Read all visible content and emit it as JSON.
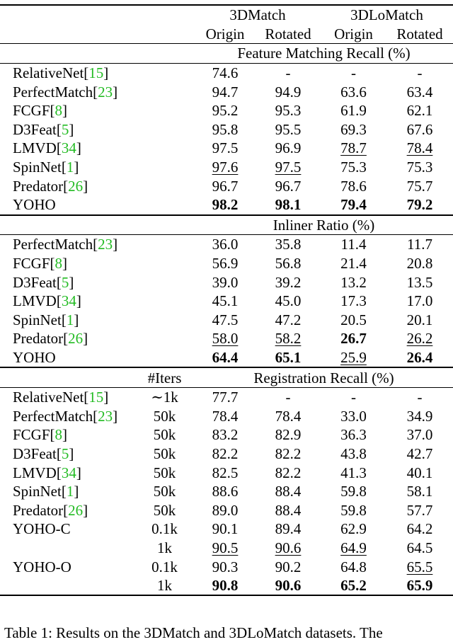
{
  "header": {
    "group1": "3DMatch",
    "group2": "3DLoMatch",
    "subcols": [
      "Origin",
      "Rotated",
      "Origin",
      "Rotated"
    ]
  },
  "sections": [
    {
      "title": "Feature Matching Recall (%)",
      "iters_label": "",
      "rows": [
        {
          "name": "RelativeNet",
          "cite": "15",
          "iters": "",
          "cells": [
            {
              "v": "74.6"
            },
            {
              "v": "-"
            },
            {
              "v": "-"
            },
            {
              "v": "-"
            }
          ]
        },
        {
          "name": "PerfectMatch",
          "cite": "23",
          "iters": "",
          "cells": [
            {
              "v": "94.7"
            },
            {
              "v": "94.9"
            },
            {
              "v": "63.6"
            },
            {
              "v": "63.4"
            }
          ]
        },
        {
          "name": "FCGF",
          "cite": "8",
          "iters": "",
          "cells": [
            {
              "v": "95.2"
            },
            {
              "v": "95.3"
            },
            {
              "v": "61.9"
            },
            {
              "v": "62.1"
            }
          ]
        },
        {
          "name": "D3Feat",
          "cite": "5",
          "iters": "",
          "cells": [
            {
              "v": "95.8"
            },
            {
              "v": "95.5"
            },
            {
              "v": "69.3"
            },
            {
              "v": "67.6"
            }
          ]
        },
        {
          "name": "LMVD",
          "cite": "34",
          "iters": "",
          "cells": [
            {
              "v": "97.5"
            },
            {
              "v": "96.9"
            },
            {
              "v": "78.7",
              "u": true
            },
            {
              "v": "78.4",
              "u": true
            }
          ]
        },
        {
          "name": "SpinNet",
          "cite": "1",
          "iters": "",
          "cells": [
            {
              "v": "97.6",
              "u": true
            },
            {
              "v": "97.5",
              "u": true
            },
            {
              "v": "75.3"
            },
            {
              "v": "75.3"
            }
          ]
        },
        {
          "name": "Predator",
          "cite": "26",
          "iters": "",
          "cells": [
            {
              "v": "96.7"
            },
            {
              "v": "96.7"
            },
            {
              "v": "78.6"
            },
            {
              "v": "75.7"
            }
          ]
        },
        {
          "name": "YOHO",
          "cite": "",
          "iters": "",
          "cells": [
            {
              "v": "98.2",
              "b": true
            },
            {
              "v": "98.1",
              "b": true
            },
            {
              "v": "79.4",
              "b": true
            },
            {
              "v": "79.2",
              "b": true
            }
          ]
        }
      ]
    },
    {
      "title": "Inliner Ratio (%)",
      "iters_label": "",
      "rows": [
        {
          "name": "PerfectMatch",
          "cite": "23",
          "iters": "",
          "cells": [
            {
              "v": "36.0"
            },
            {
              "v": "35.8"
            },
            {
              "v": "11.4"
            },
            {
              "v": "11.7"
            }
          ]
        },
        {
          "name": "FCGF",
          "cite": "8",
          "iters": "",
          "cells": [
            {
              "v": "56.9"
            },
            {
              "v": "56.8"
            },
            {
              "v": "21.4"
            },
            {
              "v": "20.8"
            }
          ]
        },
        {
          "name": "D3Feat",
          "cite": "5",
          "iters": "",
          "cells": [
            {
              "v": "39.0"
            },
            {
              "v": "39.2"
            },
            {
              "v": "13.2"
            },
            {
              "v": "13.5"
            }
          ]
        },
        {
          "name": "LMVD",
          "cite": "34",
          "iters": "",
          "cells": [
            {
              "v": "45.1"
            },
            {
              "v": "45.0"
            },
            {
              "v": "17.3"
            },
            {
              "v": "17.0"
            }
          ]
        },
        {
          "name": "SpinNet",
          "cite": "1",
          "iters": "",
          "cells": [
            {
              "v": "47.5"
            },
            {
              "v": "47.2"
            },
            {
              "v": "20.5"
            },
            {
              "v": "20.1"
            }
          ]
        },
        {
          "name": "Predator",
          "cite": "26",
          "iters": "",
          "cells": [
            {
              "v": "58.0",
              "u": true
            },
            {
              "v": "58.2",
              "u": true
            },
            {
              "v": "26.7",
              "b": true
            },
            {
              "v": "26.2",
              "u": true
            }
          ]
        },
        {
          "name": "YOHO",
          "cite": "",
          "iters": "",
          "cells": [
            {
              "v": "64.4",
              "b": true
            },
            {
              "v": "65.1",
              "b": true
            },
            {
              "v": "25.9",
              "u": true
            },
            {
              "v": "26.4",
              "b": true
            }
          ]
        }
      ]
    },
    {
      "title": "Registration Recall (%)",
      "iters_label": "#Iters",
      "rows": [
        {
          "name": "RelativeNet",
          "cite": "15",
          "iters": "∼1k",
          "cells": [
            {
              "v": "77.7"
            },
            {
              "v": "-"
            },
            {
              "v": "-"
            },
            {
              "v": "-"
            }
          ]
        },
        {
          "name": "PerfectMatch",
          "cite": "23",
          "iters": "50k",
          "cells": [
            {
              "v": "78.4"
            },
            {
              "v": "78.4"
            },
            {
              "v": "33.0"
            },
            {
              "v": "34.9"
            }
          ]
        },
        {
          "name": "FCGF",
          "cite": "8",
          "iters": "50k",
          "cells": [
            {
              "v": "83.2"
            },
            {
              "v": "82.9"
            },
            {
              "v": "36.3"
            },
            {
              "v": "37.0"
            }
          ]
        },
        {
          "name": "D3Feat",
          "cite": "5",
          "iters": "50k",
          "cells": [
            {
              "v": "82.2"
            },
            {
              "v": "82.2"
            },
            {
              "v": "43.8"
            },
            {
              "v": "42.7"
            }
          ]
        },
        {
          "name": "LMVD",
          "cite": "34",
          "iters": "50k",
          "cells": [
            {
              "v": "82.5"
            },
            {
              "v": "82.2"
            },
            {
              "v": "41.3"
            },
            {
              "v": "40.1"
            }
          ]
        },
        {
          "name": "SpinNet",
          "cite": "1",
          "iters": "50k",
          "cells": [
            {
              "v": "88.6"
            },
            {
              "v": "88.4"
            },
            {
              "v": "59.8"
            },
            {
              "v": "58.1"
            }
          ]
        },
        {
          "name": "Predator",
          "cite": "26",
          "iters": "50k",
          "cells": [
            {
              "v": "89.0"
            },
            {
              "v": "88.4"
            },
            {
              "v": "59.8"
            },
            {
              "v": "57.7"
            }
          ]
        },
        {
          "name": "YOHO-C",
          "cite": "",
          "iters": "0.1k",
          "cells": [
            {
              "v": "90.1"
            },
            {
              "v": "89.4"
            },
            {
              "v": "62.9"
            },
            {
              "v": "64.2"
            }
          ]
        },
        {
          "name": "",
          "cite": "",
          "iters": "1k",
          "cells": [
            {
              "v": "90.5",
              "u": true
            },
            {
              "v": "90.6",
              "u": true
            },
            {
              "v": "64.9",
              "u": true
            },
            {
              "v": "64.5"
            }
          ]
        },
        {
          "name": "YOHO-O",
          "cite": "",
          "iters": "0.1k",
          "cells": [
            {
              "v": "90.3"
            },
            {
              "v": "90.2"
            },
            {
              "v": "64.8"
            },
            {
              "v": "65.5",
              "u": true
            }
          ]
        },
        {
          "name": "",
          "cite": "",
          "iters": "1k",
          "cells": [
            {
              "v": "90.8",
              "b": true
            },
            {
              "v": "90.6",
              "b": true
            },
            {
              "v": "65.2",
              "b": true
            },
            {
              "v": "65.9",
              "b": true
            }
          ]
        }
      ]
    }
  ],
  "caption": "Table 1: Results on the 3DMatch and 3DLoMatch datasets. The"
}
